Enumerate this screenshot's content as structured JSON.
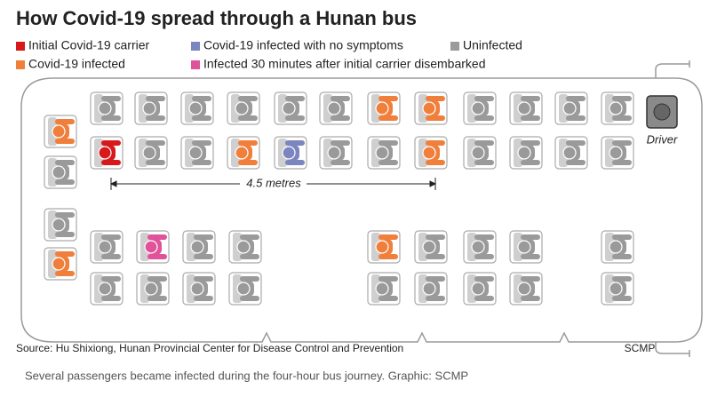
{
  "header": {
    "title": "How Covid-19 spread through a Hunan bus"
  },
  "legend": [
    {
      "label": "Initial Covid-19 carrier",
      "color": "#d7191c"
    },
    {
      "label": "Covid-19 infected with no symptoms",
      "color": "#7b86c0"
    },
    {
      "label": "Uninfected",
      "color": "#9a9a9a"
    },
    {
      "label": "Covid-19 infected",
      "color": "#f07f3c"
    },
    {
      "label": "Infected 30 minutes after initial carrier disembarked",
      "color": "#e0529a"
    }
  ],
  "distance_label": "4.5 metres",
  "driver_label": "Driver",
  "source": "Source: Hu Shixiong, Hunan Provincial Center for Disease Control and Prevention",
  "credit": "SCMP",
  "caption": "Several passengers became infected during the four-hour bus journey. Graphic: SCMP"
}
